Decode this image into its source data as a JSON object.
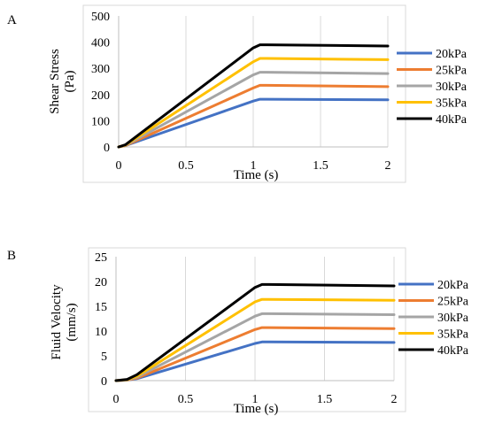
{
  "figure": {
    "panel_a_letter": "A",
    "panel_b_letter": "B"
  },
  "chart_data": [
    {
      "type": "line",
      "panel": "A",
      "xlabel": "Time (s)",
      "ylabel": "Shear Stress (Pa)",
      "ylabel_lines": [
        "Shear Stress",
        "(Pa)"
      ],
      "xlim": [
        0,
        2
      ],
      "ylim": [
        0,
        500
      ],
      "xticks": [
        0,
        0.5,
        1,
        1.5,
        2
      ],
      "xtick_labels": [
        "0",
        "0.5",
        "1",
        "1.5",
        "2"
      ],
      "yticks": [
        0,
        100,
        200,
        300,
        400,
        500
      ],
      "ytick_labels": [
        "0",
        "100",
        "200",
        "300",
        "400",
        "500"
      ],
      "grid": "vertical",
      "legend_position": "right",
      "series": [
        {
          "name": "20kPa",
          "color": "#4472C4",
          "x": [
            0,
            0.05,
            1.0,
            1.05,
            1.1,
            2.0
          ],
          "y": [
            0,
            5,
            175,
            182,
            182,
            180
          ]
        },
        {
          "name": "25kPa",
          "color": "#ED7D31",
          "x": [
            0,
            0.05,
            1.0,
            1.05,
            1.1,
            2.0
          ],
          "y": [
            0,
            5,
            225,
            235,
            235,
            230
          ]
        },
        {
          "name": "30kPa",
          "color": "#A5A5A5",
          "x": [
            0,
            0.05,
            1.0,
            1.05,
            1.1,
            2.0
          ],
          "y": [
            0,
            6,
            275,
            285,
            285,
            280
          ]
        },
        {
          "name": "35kPa",
          "color": "#FFC000",
          "x": [
            0,
            0.05,
            1.0,
            1.05,
            1.1,
            2.0
          ],
          "y": [
            0,
            7,
            325,
            338,
            338,
            333
          ]
        },
        {
          "name": "40kPa",
          "color": "#000000",
          "x": [
            0,
            0.05,
            1.0,
            1.05,
            1.1,
            2.0
          ],
          "y": [
            0,
            8,
            378,
            390,
            390,
            385
          ]
        }
      ]
    },
    {
      "type": "line",
      "panel": "B",
      "xlabel": "Time (s)",
      "ylabel": "Fluid Velocity (mm/s)",
      "ylabel_lines": [
        "Fluid Velocity",
        "(mm/s)"
      ],
      "xlim": [
        0,
        2
      ],
      "ylim": [
        0,
        25
      ],
      "xticks": [
        0,
        0.5,
        1,
        1.5,
        2
      ],
      "xtick_labels": [
        "0",
        "0.5",
        "1",
        "1.5",
        "2"
      ],
      "yticks": [
        0,
        5,
        10,
        15,
        20,
        25
      ],
      "ytick_labels": [
        "0",
        "5",
        "10",
        "15",
        "20",
        "25"
      ],
      "grid": "vertical",
      "legend_position": "right",
      "series": [
        {
          "name": "20kPa",
          "color": "#4472C4",
          "x": [
            0,
            0.08,
            0.15,
            1.0,
            1.05,
            1.1,
            2.0
          ],
          "y": [
            0,
            0.1,
            0.4,
            7.5,
            7.8,
            7.8,
            7.7
          ]
        },
        {
          "name": "25kPa",
          "color": "#ED7D31",
          "x": [
            0,
            0.08,
            0.15,
            1.0,
            1.05,
            1.1,
            2.0
          ],
          "y": [
            0,
            0.1,
            0.5,
            10.3,
            10.7,
            10.7,
            10.5
          ]
        },
        {
          "name": "30kPa",
          "color": "#A5A5A5",
          "x": [
            0,
            0.08,
            0.15,
            1.0,
            1.05,
            1.1,
            2.0
          ],
          "y": [
            0,
            0.15,
            0.7,
            13.0,
            13.5,
            13.5,
            13.3
          ]
        },
        {
          "name": "35kPa",
          "color": "#FFC000",
          "x": [
            0,
            0.08,
            0.15,
            1.0,
            1.05,
            1.1,
            2.0
          ],
          "y": [
            0,
            0.2,
            0.9,
            15.9,
            16.4,
            16.4,
            16.2
          ]
        },
        {
          "name": "40kPa",
          "color": "#000000",
          "x": [
            0,
            0.08,
            0.15,
            1.0,
            1.05,
            1.1,
            2.0
          ],
          "y": [
            0,
            0.25,
            1.2,
            18.8,
            19.4,
            19.4,
            19.1
          ]
        }
      ]
    }
  ]
}
